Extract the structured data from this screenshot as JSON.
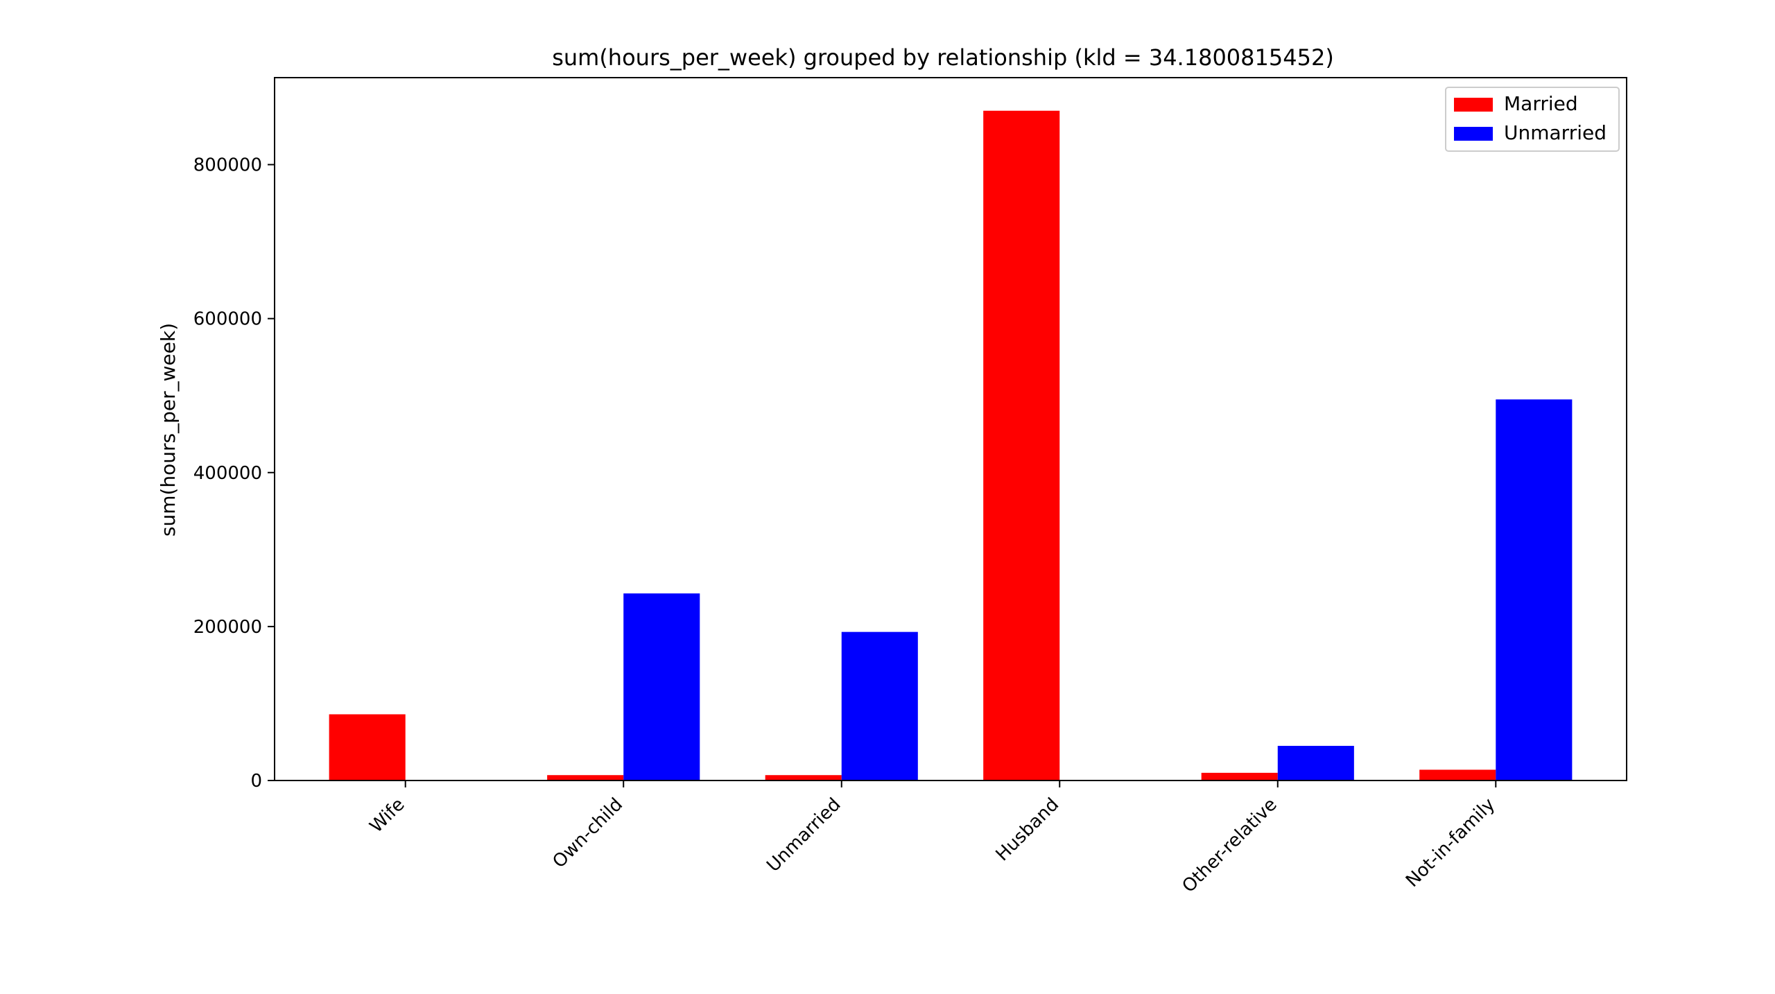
{
  "chart_data": {
    "type": "bar",
    "title": "sum(hours_per_week) grouped by relationship (kld = 34.1800815452)",
    "xlabel": "",
    "ylabel": "sum(hours_per_week)",
    "categories": [
      "Wife",
      "Own-child",
      "Unmarried",
      "Husband",
      "Other-relative",
      "Not-in-family"
    ],
    "series": [
      {
        "name": "Married",
        "color": "#ff0000",
        "values": [
          86000,
          7000,
          7000,
          870000,
          10000,
          14000
        ]
      },
      {
        "name": "Unmarried",
        "color": "#0000ff",
        "values": [
          0,
          243000,
          193000,
          0,
          45000,
          495000
        ]
      }
    ],
    "ylim": [
      0,
      913000
    ],
    "yticks": [
      0,
      200000,
      400000,
      600000,
      800000
    ],
    "ytick_labels": [
      "0",
      "200000",
      "400000",
      "600000",
      "800000"
    ],
    "grid": false,
    "legend_position": "top-right"
  }
}
